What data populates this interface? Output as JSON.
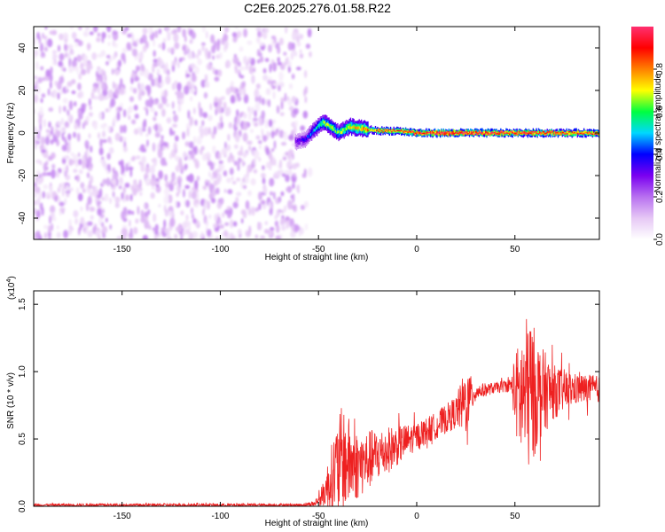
{
  "title": "C2E6.2025.276.01.58.R22",
  "chart_data": [
    {
      "type": "heatmap",
      "xlabel": "Height of straight line (km)",
      "ylabel": "Frequency (Hz)",
      "xlim": [
        -195,
        93
      ],
      "ylim": [
        -50,
        50
      ],
      "xticks": [
        -150,
        -100,
        -50,
        0,
        50
      ],
      "yticks": [
        -40,
        -20,
        0,
        20,
        40
      ],
      "grid": false,
      "colorbar": {
        "label": "Normalized spectral amplitude",
        "range": [
          0,
          1
        ],
        "ticks": [
          {
            "value": 0.0,
            "label": "0.0"
          },
          {
            "value": 0.2,
            "label": "0.2"
          },
          {
            "value": 0.4,
            "label": "0.4"
          },
          {
            "value": 0.6,
            "label": "0.6"
          },
          {
            "value": 0.8,
            "label": "0.8"
          }
        ],
        "colors": [
          "#ffffff",
          "#e6c8f5",
          "#b870f0",
          "#7a00f0",
          "#0000ff",
          "#00d8ff",
          "#00ff40",
          "#ffff00",
          "#ff8000",
          "#ff0000",
          "#ff3070"
        ]
      },
      "noise_region": {
        "x_range": [
          -195,
          -60
        ],
        "freq_range": [
          -50,
          50
        ],
        "amplitude": 0.15
      },
      "signal_ridge": [
        {
          "x": -62,
          "freq": -4,
          "amplitude": 0.3
        },
        {
          "x": -57,
          "freq": -3,
          "amplitude": 0.35
        },
        {
          "x": -52,
          "freq": 2,
          "amplitude": 0.5
        },
        {
          "x": -48,
          "freq": 5,
          "amplitude": 0.6
        },
        {
          "x": -44,
          "freq": 3,
          "amplitude": 0.65
        },
        {
          "x": -40,
          "freq": 0,
          "amplitude": 0.6
        },
        {
          "x": -34,
          "freq": 3,
          "amplitude": 0.7
        },
        {
          "x": -28,
          "freq": 2,
          "amplitude": 0.75
        },
        {
          "x": -20,
          "freq": 1,
          "amplitude": 0.8
        },
        {
          "x": -10,
          "freq": 1,
          "amplitude": 0.85
        },
        {
          "x": 0,
          "freq": 0,
          "amplitude": 0.9
        },
        {
          "x": 10,
          "freq": 0,
          "amplitude": 0.95
        },
        {
          "x": 20,
          "freq": 0,
          "amplitude": 0.95
        },
        {
          "x": 30,
          "freq": 0,
          "amplitude": 0.95
        },
        {
          "x": 40,
          "freq": 0,
          "amplitude": 0.95
        },
        {
          "x": 50,
          "freq": 0,
          "amplitude": 0.9
        },
        {
          "x": 60,
          "freq": 0,
          "amplitude": 0.9
        },
        {
          "x": 70,
          "freq": 0,
          "amplitude": 0.9
        },
        {
          "x": 80,
          "freq": 0,
          "amplitude": 0.85
        },
        {
          "x": 93,
          "freq": 0,
          "amplitude": 0.85
        }
      ]
    },
    {
      "type": "line",
      "xlabel": "Height of straight line (km)",
      "ylabel": "SNR (10 * v/v)",
      "multiplier_label": "(x10",
      "multiplier_exponent": "4",
      "multiplier_close": ")",
      "xlim": [
        -195,
        93
      ],
      "ylim": [
        0,
        1.6
      ],
      "xticks": [
        -150,
        -100,
        -50,
        0,
        50
      ],
      "yticks": [
        {
          "value": 0.0,
          "label": "0.0"
        },
        {
          "value": 0.5,
          "label": "0.5"
        },
        {
          "value": 1.0,
          "label": "1.0"
        },
        {
          "value": 1.5,
          "label": "1.5"
        }
      ],
      "grid": false,
      "color": "#ee2020",
      "series_envelope": [
        {
          "x": -195,
          "y": 0.01,
          "spread": 0.01
        },
        {
          "x": -60,
          "y": 0.01,
          "spread": 0.01
        },
        {
          "x": -52,
          "y": 0.02,
          "spread": 0.02
        },
        {
          "x": -48,
          "y": 0.08,
          "spread": 0.08
        },
        {
          "x": -42,
          "y": 0.25,
          "spread": 0.3
        },
        {
          "x": -38,
          "y": 0.35,
          "spread": 0.4
        },
        {
          "x": -30,
          "y": 0.3,
          "spread": 0.25
        },
        {
          "x": -20,
          "y": 0.38,
          "spread": 0.2
        },
        {
          "x": -10,
          "y": 0.45,
          "spread": 0.15
        },
        {
          "x": 0,
          "y": 0.52,
          "spread": 0.1
        },
        {
          "x": 10,
          "y": 0.6,
          "spread": 0.1
        },
        {
          "x": 20,
          "y": 0.7,
          "spread": 0.12
        },
        {
          "x": 25,
          "y": 0.78,
          "spread": 0.25
        },
        {
          "x": 30,
          "y": 0.85,
          "spread": 0.06
        },
        {
          "x": 40,
          "y": 0.88,
          "spread": 0.04
        },
        {
          "x": 48,
          "y": 0.9,
          "spread": 0.05
        },
        {
          "x": 52,
          "y": 0.8,
          "spread": 0.45
        },
        {
          "x": 57,
          "y": 0.85,
          "spread": 0.6
        },
        {
          "x": 63,
          "y": 0.85,
          "spread": 0.35
        },
        {
          "x": 70,
          "y": 0.85,
          "spread": 0.2
        },
        {
          "x": 80,
          "y": 0.87,
          "spread": 0.12
        },
        {
          "x": 93,
          "y": 0.87,
          "spread": 0.1
        }
      ]
    }
  ]
}
